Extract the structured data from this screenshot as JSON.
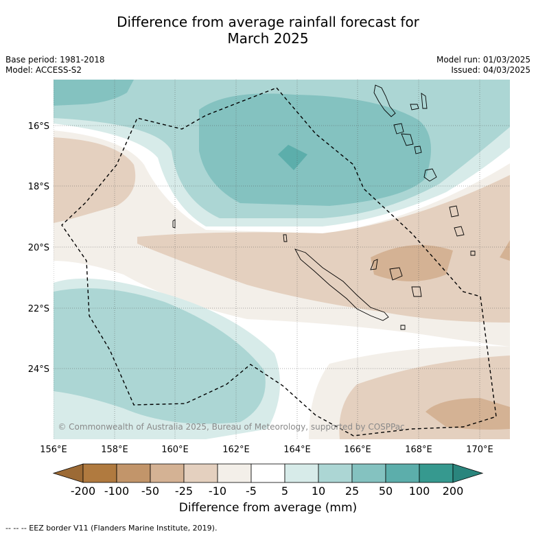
{
  "title_line1": "Difference from average rainfall forecast for",
  "title_line2": "March 2025",
  "base_period": "Base period: 1981-2018",
  "model": "Model: ACCESS-S2",
  "model_run": "Model run: 01/03/2025",
  "issued": "Issued: 04/03/2025",
  "copyright": "© Commonwealth of Australia 2025, Bureau of Meteorology, supported by COSPPac",
  "lon_ticks": [
    "156°E",
    "158°E",
    "160°E",
    "162°E",
    "164°E",
    "166°E",
    "168°E",
    "170°E"
  ],
  "lat_ticks": [
    "16°S",
    "18°S",
    "20°S",
    "22°S",
    "24°S"
  ],
  "colorbar": {
    "label": "Difference from average (mm)",
    "ticks": [
      "-200",
      "-100",
      "-50",
      "-25",
      "-10",
      "-5",
      "5",
      "10",
      "25",
      "50",
      "100",
      "200"
    ],
    "colors": [
      "#b07a3f",
      "#c2956a",
      "#d4b294",
      "#e4d0bf",
      "#f3efe9",
      "#ffffff",
      "#d7ebe9",
      "#acd6d4",
      "#84c2c0",
      "#5caeab",
      "#36998f"
    ],
    "under_color": "#9c6a35",
    "over_color": "#2a857d"
  },
  "footnote": "-- -- -- EEZ border V11 (Flanders Marine Institute, 2019)."
}
